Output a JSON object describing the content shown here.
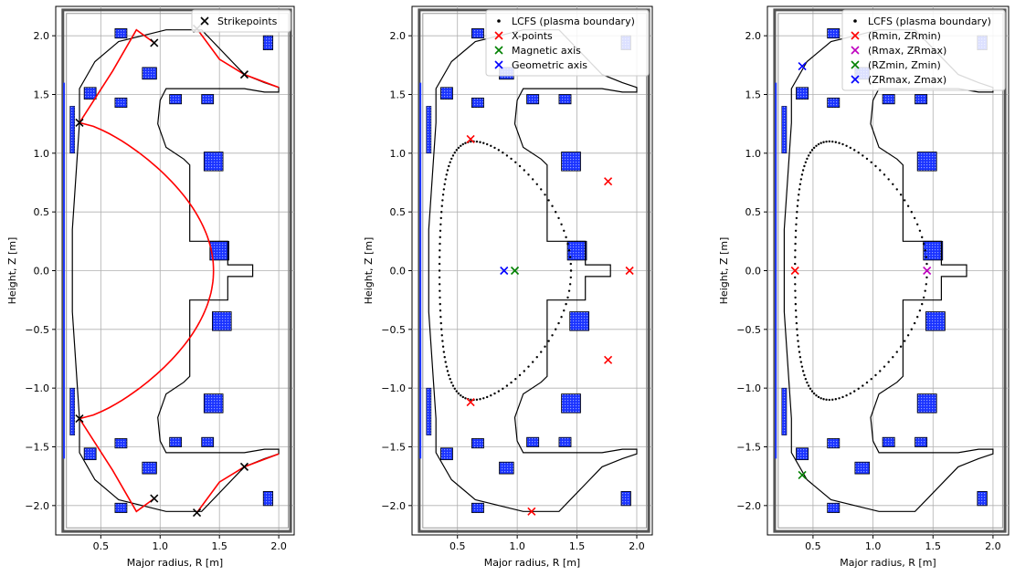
{
  "figure": {
    "panels": [
      {
        "xlabel": "Major radius, R [m]",
        "ylabel": "Height, Z [m]",
        "legend": [
          {
            "label": "Strikepoints",
            "marker": "x",
            "color": "#000000"
          }
        ]
      },
      {
        "xlabel": "Major radius, R [m]",
        "ylabel": "Height, Z [m]",
        "legend": [
          {
            "label": "LCFS (plasma boundary)",
            "marker": "dot",
            "color": "#000000"
          },
          {
            "label": "X-points",
            "marker": "x",
            "color": "#ff0000"
          },
          {
            "label": "Magnetic axis",
            "marker": "x",
            "color": "#008000"
          },
          {
            "label": "Geometric axis",
            "marker": "x",
            "color": "#0000ff"
          }
        ]
      },
      {
        "xlabel": "Major radius, R [m]",
        "ylabel": "Height, Z [m]",
        "legend": [
          {
            "label": "LCFS (plasma boundary)",
            "marker": "dot",
            "color": "#000000"
          },
          {
            "label": "(Rmin, ZRmin)",
            "marker": "x",
            "color": "#ff0000"
          },
          {
            "label": "(Rmax, ZRmax)",
            "marker": "x",
            "color": "#bf00bf"
          },
          {
            "label": "(RZmin, Zmin)",
            "marker": "x",
            "color": "#008000"
          },
          {
            "label": "(ZRmax, Zmax)",
            "marker": "x",
            "color": "#0000ff"
          }
        ]
      }
    ]
  },
  "chart_data": [
    {
      "type": "line",
      "xlim": [
        0.12,
        2.13
      ],
      "ylim": [
        -2.25,
        2.25
      ],
      "xticks": [
        0.5,
        1.0,
        1.5,
        2.0
      ],
      "yticks": [
        -2.0,
        -1.5,
        -1.0,
        -0.5,
        0.0,
        0.5,
        1.0,
        1.5,
        2.0
      ],
      "grid": true,
      "legend_position": "top-right",
      "series": [
        {
          "name": "Strikepoints",
          "marker": "x",
          "color": "#000000",
          "x": [
            0.32,
            0.95,
            1.31,
            1.71,
            0.32,
            0.95,
            1.31,
            1.71
          ],
          "y": [
            1.26,
            1.94,
            2.06,
            1.67,
            -1.26,
            -1.94,
            -2.06,
            -1.67
          ]
        }
      ]
    },
    {
      "type": "scatter",
      "xlim": [
        0.12,
        2.13
      ],
      "ylim": [
        -2.25,
        2.25
      ],
      "xticks": [
        0.5,
        1.0,
        1.5,
        2.0
      ],
      "yticks": [
        -2.0,
        -1.5,
        -1.0,
        -0.5,
        0.0,
        0.5,
        1.0,
        1.5,
        2.0
      ],
      "grid": true,
      "legend_position": "top-right",
      "series": [
        {
          "name": "X-points",
          "marker": "x",
          "color": "#ff0000",
          "x": [
            0.61,
            0.61,
            1.76,
            1.76,
            1.94,
            1.12
          ],
          "y": [
            1.12,
            -1.12,
            0.76,
            -0.76,
            0.0,
            -2.05
          ]
        },
        {
          "name": "Magnetic axis",
          "marker": "x",
          "color": "#008000",
          "x": [
            0.98
          ],
          "y": [
            0.0
          ]
        },
        {
          "name": "Geometric axis",
          "marker": "x",
          "color": "#0000ff",
          "x": [
            0.89
          ],
          "y": [
            0.0
          ]
        }
      ]
    },
    {
      "type": "scatter",
      "xlim": [
        0.12,
        2.13
      ],
      "ylim": [
        -2.25,
        2.25
      ],
      "xticks": [
        0.5,
        1.0,
        1.5,
        2.0
      ],
      "yticks": [
        -2.0,
        -1.5,
        -1.0,
        -0.5,
        0.0,
        0.5,
        1.0,
        1.5,
        2.0
      ],
      "grid": true,
      "legend_position": "top-right",
      "series": [
        {
          "name": "(Rmin, ZRmin)",
          "marker": "x",
          "color": "#ff0000",
          "x": [
            0.35
          ],
          "y": [
            0.0
          ]
        },
        {
          "name": "(Rmax, ZRmax)",
          "marker": "x",
          "color": "#bf00bf",
          "x": [
            1.45
          ],
          "y": [
            0.0
          ]
        },
        {
          "name": "(RZmin, Zmin)",
          "marker": "x",
          "color": "#008000",
          "x": [
            0.41
          ],
          "y": [
            -1.74
          ]
        },
        {
          "name": "(ZRmax, Zmax)",
          "marker": "x",
          "color": "#0000ff",
          "x": [
            0.41
          ],
          "y": [
            1.74
          ]
        }
      ]
    }
  ]
}
